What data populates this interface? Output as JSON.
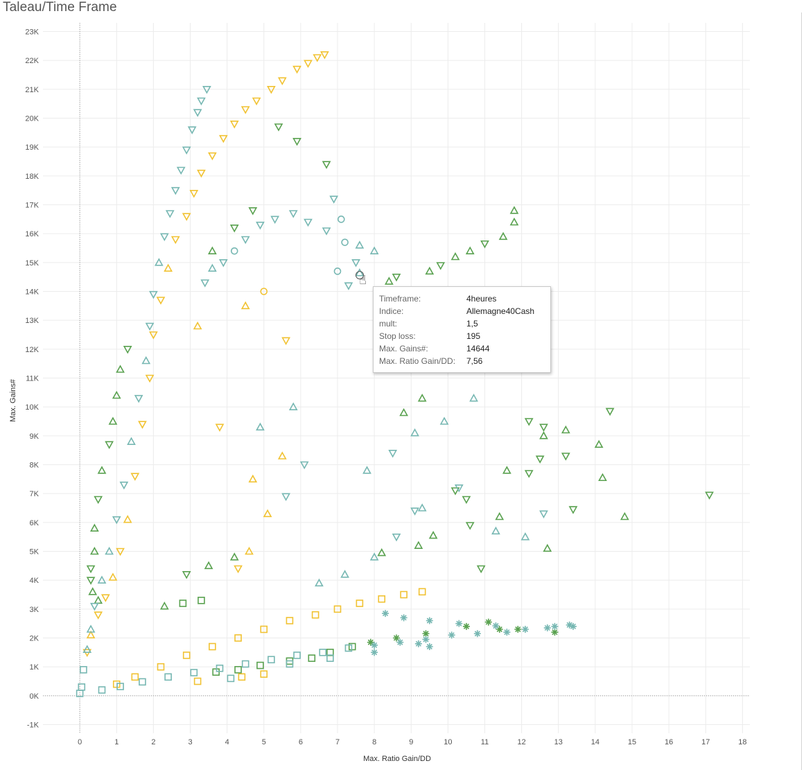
{
  "page_title": "Taleau/Time Frame",
  "colors": {
    "green": "#59a14f",
    "yellow": "#f1c232",
    "teal": "#76b7b2",
    "grid": "#ececec"
  },
  "chart_data": {
    "type": "scatter",
    "xlabel": "Max. Ratio Gain/DD",
    "ylabel": "Max. Gains#",
    "xlim": [
      -1,
      18.2
    ],
    "ylim": [
      -1300,
      23300
    ],
    "x_ticks": [
      "0",
      "1",
      "2",
      "3",
      "4",
      "5",
      "6",
      "7",
      "8",
      "9",
      "10",
      "11",
      "12",
      "13",
      "14",
      "15",
      "16",
      "17",
      "18"
    ],
    "y_ticks": [
      "-1K",
      "0K",
      "1K",
      "2K",
      "3K",
      "4K",
      "5K",
      "6K",
      "7K",
      "8K",
      "9K",
      "10K",
      "11K",
      "12K",
      "13K",
      "14K",
      "15K",
      "16K",
      "17K",
      "18K",
      "19K",
      "20K",
      "21K",
      "22K",
      "23K"
    ],
    "grid": true,
    "marker_shapes": [
      "triangle-up",
      "triangle-down",
      "circle",
      "square",
      "asterisk"
    ],
    "series": [
      {
        "color": "#59a14f",
        "points": [
          [
            17.1,
            6950
          ],
          [
            14.8,
            6200
          ],
          [
            14.4,
            9850
          ],
          [
            14.2,
            7550
          ],
          [
            14.1,
            8700
          ],
          [
            13.4,
            6450
          ],
          [
            13.2,
            8300
          ],
          [
            12.7,
            5100
          ],
          [
            12.6,
            9000
          ],
          [
            11.8,
            16800
          ],
          [
            11.8,
            16400
          ],
          [
            11.5,
            15900
          ],
          [
            11.0,
            15650
          ],
          [
            10.6,
            15400
          ],
          [
            10.2,
            15200
          ],
          [
            9.8,
            14900
          ],
          [
            9.5,
            14700
          ],
          [
            8.6,
            14500
          ],
          [
            8.4,
            14350
          ],
          [
            9.3,
            10300
          ],
          [
            8.8,
            9800
          ],
          [
            12.2,
            9500
          ],
          [
            12.6,
            9300
          ],
          [
            13.2,
            9200
          ],
          [
            12.5,
            8200
          ],
          [
            11.6,
            7800
          ],
          [
            12.2,
            7700
          ],
          [
            10.2,
            7100
          ],
          [
            10.5,
            6800
          ],
          [
            11.4,
            6200
          ],
          [
            10.6,
            5900
          ],
          [
            9.6,
            5550
          ],
          [
            9.2,
            5200
          ],
          [
            8.2,
            4950
          ],
          [
            10.9,
            4400
          ],
          [
            12.9,
            2200
          ],
          [
            11.9,
            2300
          ],
          [
            11.4,
            2300
          ],
          [
            11.1,
            2550
          ],
          [
            10.5,
            2400
          ],
          [
            9.4,
            2150
          ],
          [
            8.6,
            2000
          ],
          [
            7.9,
            1850
          ],
          [
            7.4,
            1700
          ],
          [
            6.8,
            1500
          ],
          [
            6.3,
            1300
          ],
          [
            5.7,
            1200
          ],
          [
            4.9,
            1050
          ],
          [
            4.3,
            900
          ],
          [
            3.7,
            820
          ],
          [
            6.7,
            18400
          ],
          [
            5.9,
            19200
          ],
          [
            5.4,
            19700
          ],
          [
            4.7,
            16800
          ],
          [
            4.2,
            16200
          ],
          [
            3.6,
            15400
          ],
          [
            1.3,
            12000
          ],
          [
            1.1,
            11300
          ],
          [
            1.0,
            10400
          ],
          [
            0.9,
            9500
          ],
          [
            0.8,
            8700
          ],
          [
            0.6,
            7800
          ],
          [
            0.5,
            6800
          ],
          [
            0.4,
            5800
          ],
          [
            0.4,
            5000
          ],
          [
            0.3,
            4400
          ],
          [
            0.3,
            4000
          ],
          [
            0.35,
            3600
          ],
          [
            0.5,
            3300
          ],
          [
            3.3,
            3300
          ],
          [
            2.8,
            3200
          ],
          [
            2.3,
            3100
          ],
          [
            2.9,
            4200
          ],
          [
            3.5,
            4500
          ],
          [
            4.2,
            4800
          ]
        ]
      },
      {
        "color": "#f1c232",
        "points": [
          [
            6.65,
            22200
          ],
          [
            6.45,
            22100
          ],
          [
            6.2,
            21900
          ],
          [
            5.9,
            21700
          ],
          [
            5.5,
            21300
          ],
          [
            5.2,
            21000
          ],
          [
            4.8,
            20600
          ],
          [
            4.5,
            20300
          ],
          [
            4.2,
            19800
          ],
          [
            3.9,
            19300
          ],
          [
            3.6,
            18700
          ],
          [
            3.3,
            18100
          ],
          [
            3.1,
            17400
          ],
          [
            2.9,
            16600
          ],
          [
            2.6,
            15800
          ],
          [
            2.4,
            14800
          ],
          [
            2.2,
            13700
          ],
          [
            2.0,
            12500
          ],
          [
            1.9,
            11000
          ],
          [
            1.7,
            9400
          ],
          [
            1.5,
            7600
          ],
          [
            1.3,
            6100
          ],
          [
            1.1,
            5000
          ],
          [
            0.9,
            4100
          ],
          [
            0.7,
            3400
          ],
          [
            0.5,
            2800
          ],
          [
            0.3,
            2100
          ],
          [
            0.2,
            1500
          ],
          [
            9.3,
            3600
          ],
          [
            8.8,
            3500
          ],
          [
            8.2,
            3350
          ],
          [
            7.6,
            3200
          ],
          [
            7.0,
            3000
          ],
          [
            6.4,
            2800
          ],
          [
            5.7,
            2600
          ],
          [
            5.0,
            2300
          ],
          [
            4.3,
            2000
          ],
          [
            3.6,
            1700
          ],
          [
            2.9,
            1400
          ],
          [
            2.2,
            1000
          ],
          [
            1.5,
            650
          ],
          [
            1.0,
            400
          ],
          [
            5.0,
            750
          ],
          [
            4.4,
            650
          ],
          [
            3.2,
            500
          ],
          [
            4.6,
            5000
          ],
          [
            4.3,
            4400
          ],
          [
            5.1,
            6300
          ],
          [
            4.7,
            7500
          ],
          [
            5.5,
            8300
          ],
          [
            3.8,
            9300
          ],
          [
            5.6,
            12300
          ],
          [
            3.2,
            12800
          ],
          [
            4.5,
            13500
          ],
          [
            5.0,
            14000
          ]
        ]
      },
      {
        "color": "#76b7b2",
        "points": [
          [
            3.45,
            21000
          ],
          [
            3.3,
            20600
          ],
          [
            3.2,
            20200
          ],
          [
            3.05,
            19600
          ],
          [
            2.9,
            18900
          ],
          [
            2.75,
            18200
          ],
          [
            2.6,
            17500
          ],
          [
            2.45,
            16700
          ],
          [
            2.3,
            15900
          ],
          [
            2.15,
            15000
          ],
          [
            2.0,
            13900
          ],
          [
            1.9,
            12800
          ],
          [
            1.8,
            11600
          ],
          [
            1.6,
            10300
          ],
          [
            1.4,
            8800
          ],
          [
            1.2,
            7300
          ],
          [
            1.0,
            6100
          ],
          [
            0.8,
            5000
          ],
          [
            0.6,
            4000
          ],
          [
            0.4,
            3100
          ],
          [
            0.3,
            2300
          ],
          [
            0.2,
            1600
          ],
          [
            0.1,
            900
          ],
          [
            0.05,
            300
          ],
          [
            0.0,
            80
          ],
          [
            6.9,
            17200
          ],
          [
            7.1,
            16500
          ],
          [
            6.7,
            16100
          ],
          [
            6.2,
            16400
          ],
          [
            5.8,
            16700
          ],
          [
            5.3,
            16500
          ],
          [
            4.9,
            16300
          ],
          [
            4.5,
            15800
          ],
          [
            4.2,
            15400
          ],
          [
            3.9,
            15000
          ],
          [
            3.6,
            14800
          ],
          [
            3.4,
            14300
          ],
          [
            7.2,
            15700
          ],
          [
            7.6,
            15600
          ],
          [
            8.0,
            15400
          ],
          [
            7.5,
            15000
          ],
          [
            7.0,
            14700
          ],
          [
            7.3,
            14200
          ],
          [
            7.6,
            14644
          ],
          [
            8.3,
            2850
          ],
          [
            8.8,
            2700
          ],
          [
            9.5,
            2600
          ],
          [
            10.3,
            2500
          ],
          [
            11.3,
            2420
          ],
          [
            12.1,
            2300
          ],
          [
            12.9,
            2400
          ],
          [
            13.3,
            2450
          ],
          [
            13.4,
            2400
          ],
          [
            12.7,
            2350
          ],
          [
            11.6,
            2200
          ],
          [
            10.8,
            2150
          ],
          [
            10.1,
            2100
          ],
          [
            9.4,
            1950
          ],
          [
            8.7,
            1850
          ],
          [
            8.0,
            1750
          ],
          [
            7.3,
            1650
          ],
          [
            6.6,
            1500
          ],
          [
            5.9,
            1400
          ],
          [
            5.2,
            1250
          ],
          [
            4.5,
            1100
          ],
          [
            3.8,
            950
          ],
          [
            3.1,
            800
          ],
          [
            2.4,
            650
          ],
          [
            1.7,
            480
          ],
          [
            1.1,
            320
          ],
          [
            0.6,
            200
          ],
          [
            9.5,
            1700
          ],
          [
            9.2,
            1800
          ],
          [
            8.0,
            1500
          ],
          [
            6.8,
            1300
          ],
          [
            5.7,
            1100
          ],
          [
            4.1,
            600
          ],
          [
            12.1,
            5500
          ],
          [
            12.6,
            6300
          ],
          [
            11.3,
            5700
          ],
          [
            9.1,
            6400
          ],
          [
            8.6,
            5500
          ],
          [
            8.0,
            4800
          ],
          [
            7.2,
            4200
          ],
          [
            6.5,
            3900
          ],
          [
            7.8,
            7800
          ],
          [
            8.5,
            8400
          ],
          [
            9.1,
            9100
          ],
          [
            9.9,
            9500
          ],
          [
            10.7,
            10300
          ],
          [
            10.3,
            7200
          ],
          [
            9.3,
            6500
          ],
          [
            5.6,
            6900
          ],
          [
            6.1,
            8000
          ],
          [
            4.9,
            9300
          ],
          [
            5.8,
            10000
          ]
        ]
      }
    ],
    "tooltip": {
      "rows": [
        {
          "label": "Timeframe:",
          "value": "4heures"
        },
        {
          "label": "Indice:",
          "value": "Allemagne40Cash"
        },
        {
          "label": "mult:",
          "value": "1,5"
        },
        {
          "label": "Stop loss:",
          "value": "195"
        },
        {
          "label": "Max. Gains#:",
          "value": "14644"
        },
        {
          "label": "Max. Ratio Gain/DD:",
          "value": "7,56"
        }
      ]
    }
  }
}
